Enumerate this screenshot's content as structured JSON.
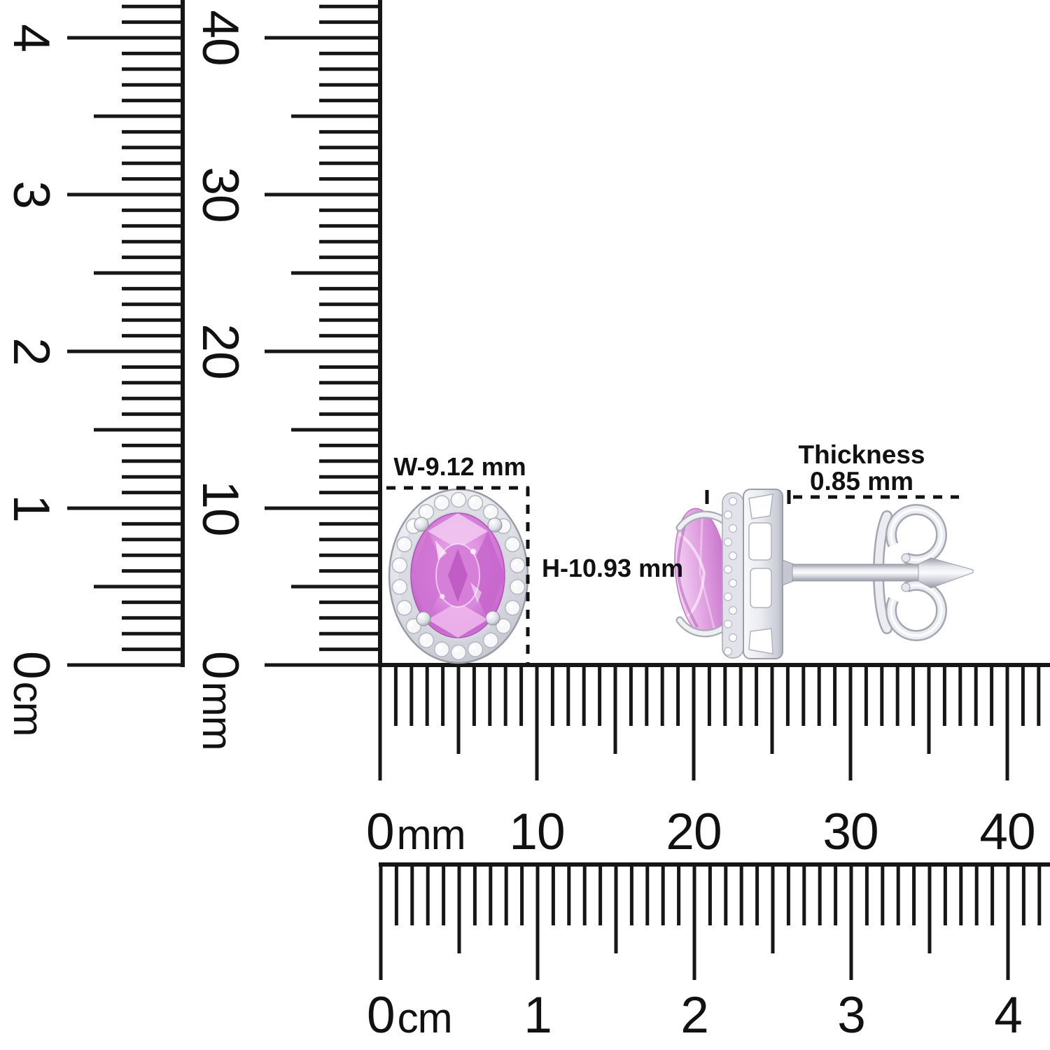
{
  "image_type": "product-dimension-diagram",
  "colors": {
    "background": "#ffffff",
    "ink": "#161616",
    "gem_pink": "#d26fd6",
    "gem_pink_light": "#f2c9f1",
    "metal_silver": "#e9eaef"
  },
  "dimension_labels": {
    "width": "W-9.12 mm",
    "height": "H-10.93 mm",
    "thickness_title": "Thickness",
    "thickness_value": "0.85 mm"
  },
  "rulers": {
    "vertical_cm": {
      "unit": "cm",
      "numbers": [
        "4",
        "3",
        "2",
        "1"
      ],
      "zero": "0"
    },
    "vertical_mm": {
      "unit": "mm",
      "numbers": [
        "40",
        "30",
        "20",
        "10"
      ],
      "zero": "0"
    },
    "horizontal_mm": {
      "unit": "mm",
      "numbers": [
        "10",
        "20",
        "30",
        "40"
      ],
      "zero": "0"
    },
    "horizontal_cm": {
      "unit": "cm",
      "numbers": [
        "1",
        "2",
        "3",
        "4"
      ],
      "zero": "0"
    }
  }
}
